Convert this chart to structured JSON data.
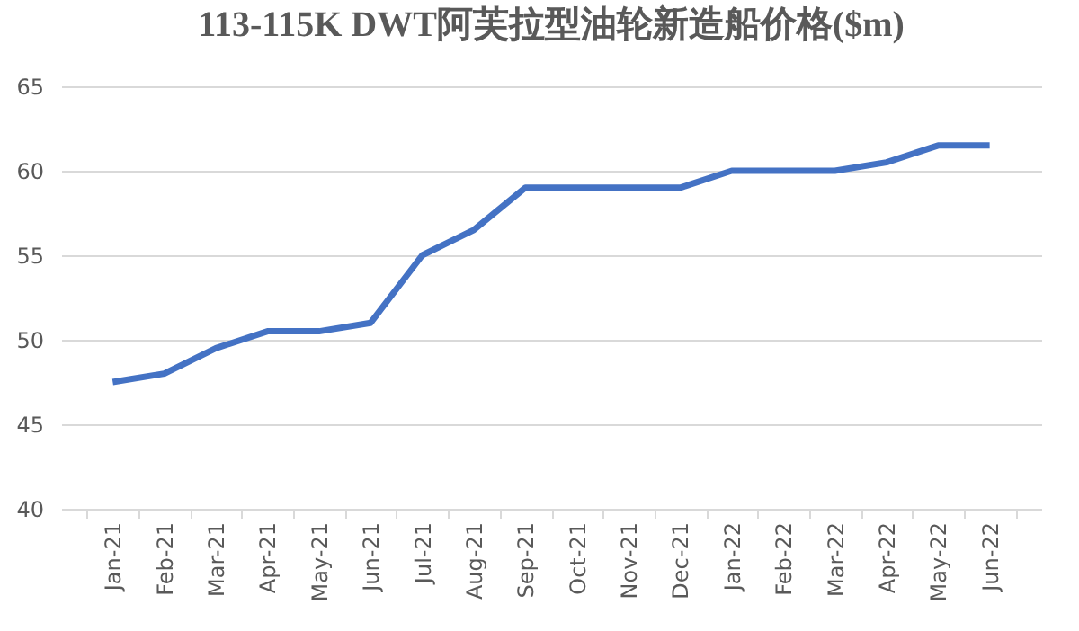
{
  "chart_data": {
    "type": "line",
    "title": "113-115K DWT阿芙拉型油轮新造船价格($m)",
    "categories": [
      "Jan-21",
      "Feb-21",
      "Mar-21",
      "Apr-21",
      "May-21",
      "Jun-21",
      "Jul-21",
      "Aug-21",
      "Sep-21",
      "Oct-21",
      "Nov-21",
      "Dec-21",
      "Jan-22",
      "Feb-22",
      "Mar-22",
      "Apr-22",
      "May-22",
      "Jun-22"
    ],
    "series": [
      {
        "color": "#4472c4",
        "values": [
          47.5,
          48,
          49.5,
          50.5,
          50.5,
          51,
          55,
          56.5,
          59,
          59,
          59,
          59,
          60,
          60,
          60,
          60.5,
          61.5,
          61.5
        ]
      }
    ],
    "ylim": [
      40,
      65
    ],
    "yticks": [
      40,
      45,
      50,
      55,
      60,
      65
    ],
    "grid": "y",
    "marker": "none",
    "line_style": "solid"
  }
}
